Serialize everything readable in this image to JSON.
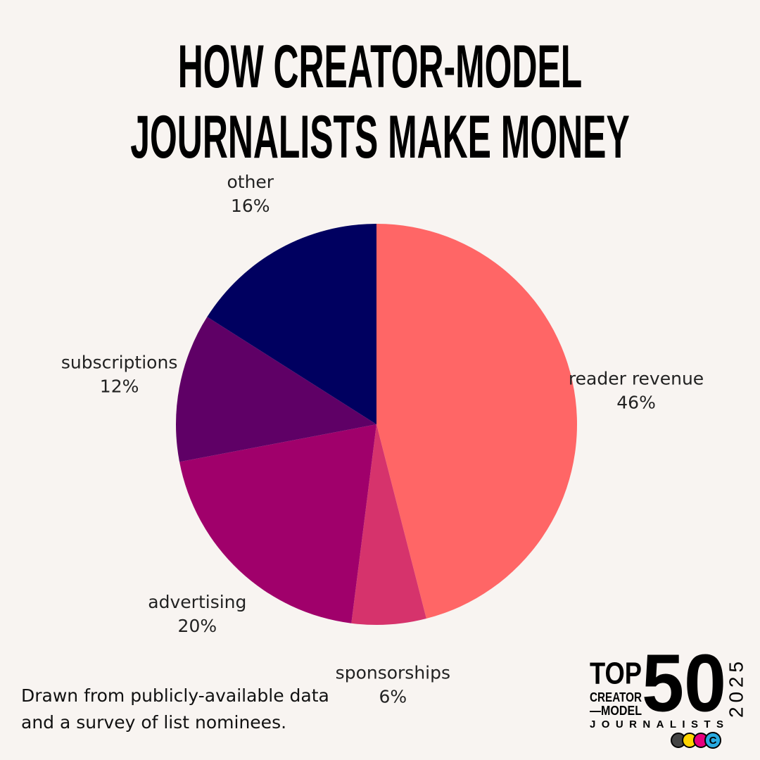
{
  "chart_data": {
    "type": "pie",
    "title": "HOW CREATOR-MODEL JOURNALISTS MAKE MONEY",
    "categories": [
      "reader revenue",
      "sponsorships",
      "advertising",
      "subscriptions",
      "other"
    ],
    "values": [
      46,
      6,
      20,
      12,
      16
    ],
    "value_labels": [
      "46%",
      "6%",
      "20%",
      "12%",
      "16%"
    ],
    "colors": [
      "#ff6666",
      "#d6336c",
      "#a0006b",
      "#5f0066",
      "#000060"
    ],
    "note": "Drawn from publicly-available data and a survey of list nominees."
  },
  "logo": {
    "top": "TOP",
    "creator": "CREATOR",
    "model": "—MODEL",
    "number": "50",
    "journalists": "JOURNALISTS",
    "year": "2025",
    "badge": "C"
  }
}
